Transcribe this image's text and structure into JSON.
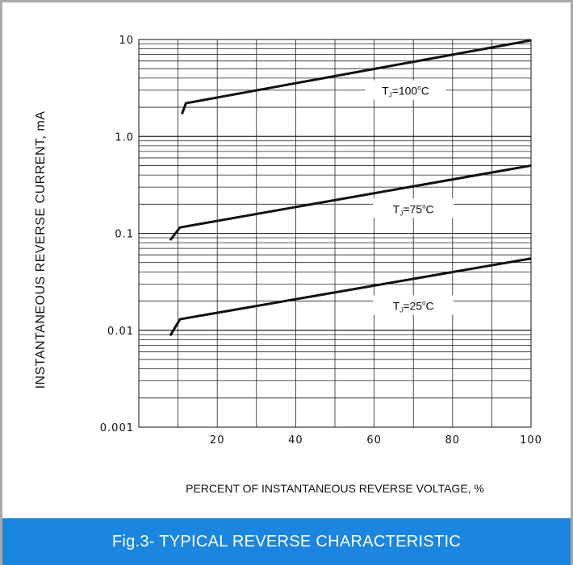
{
  "chart_data": {
    "type": "line",
    "title": "",
    "xlabel": "PERCENT OF INSTANTANEOUS REVERSE VOLTAGE, %",
    "ylabel": "INSTANTANEOUS REVERSE CURRENT, mA",
    "xlim": [
      0,
      100
    ],
    "ylim": [
      0.001,
      10
    ],
    "yscale": "log",
    "grid": true,
    "x_ticks": [
      20,
      40,
      60,
      80,
      100
    ],
    "x_tick_labels": [
      "20",
      "40",
      "60",
      "80",
      "100"
    ],
    "y_ticks": [
      0.001,
      0.01,
      0.1,
      1,
      10
    ],
    "y_tick_labels": [
      "0.001",
      "0.01",
      "0.1",
      "1.0",
      "10"
    ],
    "series": [
      {
        "label_main": "T",
        "label_sub": "J",
        "label_value": "=100",
        "label_deg": "o",
        "label_unit": "C",
        "label_at": [
          68,
          2.9
        ],
        "x": [
          11,
          12,
          100
        ],
        "y": [
          1.7,
          2.2,
          9.8
        ]
      },
      {
        "label_main": "T",
        "label_sub": "J",
        "label_value": "=75",
        "label_deg": "o",
        "label_unit": "C",
        "label_at": [
          70,
          0.175
        ],
        "x": [
          8,
          10.5,
          100
        ],
        "y": [
          0.085,
          0.115,
          0.5
        ]
      },
      {
        "label_main": "T",
        "label_sub": "J",
        "label_value": "=25",
        "label_deg": "o",
        "label_unit": "C",
        "label_at": [
          70,
          0.0175
        ],
        "x": [
          8,
          10.5,
          100
        ],
        "y": [
          0.0088,
          0.013,
          0.055
        ]
      }
    ]
  },
  "caption": "Fig.3- TYPICAL REVERSE CHARACTERISTIC"
}
